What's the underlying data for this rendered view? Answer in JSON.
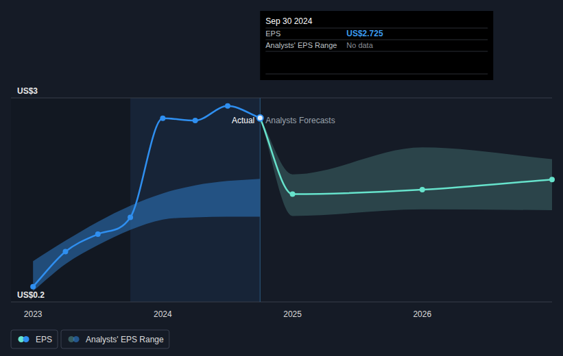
{
  "chart_data": {
    "type": "line",
    "xlim": [
      2022.83,
      2027.0
    ],
    "xticks": [
      2023,
      2024,
      2025,
      2026
    ],
    "ylim": [
      0.2,
      3
    ],
    "yticks": [
      {
        "value": 0.2,
        "label": "US$0.2"
      },
      {
        "value": 3,
        "label": "US$3"
      }
    ],
    "grid": true,
    "legend": "bottom-left",
    "annotations": [
      "Actual",
      "Analysts Forecasts",
      "Sep 30 2024",
      "EPS",
      "US$2.725",
      "Analysts' EPS Range",
      "No data"
    ],
    "series": [
      {
        "name": "EPS",
        "type": "line",
        "color": "#2f8ff0",
        "marker": "circle",
        "x": [
          2023.0,
          2023.25,
          2023.5,
          2023.75,
          2024.0,
          2024.25,
          2024.5,
          2024.75
        ],
        "values": [
          0.41,
          0.89,
          1.13,
          1.36,
          2.72,
          2.69,
          2.89,
          2.725
        ]
      },
      {
        "name": "Analysts' EPS Range",
        "type": "area",
        "color": "#2f7fd0",
        "x": [
          2023.0,
          2023.25,
          2023.5,
          2023.75,
          2024.0,
          2024.25,
          2024.5,
          2024.75
        ],
        "low": [
          0.35,
          0.72,
          0.98,
          1.19,
          1.33,
          1.36,
          1.37,
          1.37
        ],
        "high": [
          0.76,
          1.04,
          1.3,
          1.52,
          1.69,
          1.8,
          1.86,
          1.89
        ]
      },
      {
        "type": "line",
        "color": "#67e3cc",
        "marker": "circle",
        "x": [
          2024.75,
          2025.0,
          2026.0,
          2027.0
        ],
        "values": [
          2.725,
          1.68,
          1.74,
          1.88
        ]
      },
      {
        "type": "area",
        "color": "#4f8a85",
        "x": [
          2024.75,
          2025.0,
          2026.0,
          2027.0
        ],
        "low": [
          2.725,
          1.38,
          1.47,
          1.46
        ],
        "high": [
          2.725,
          1.95,
          2.32,
          2.16
        ]
      }
    ]
  }
}
